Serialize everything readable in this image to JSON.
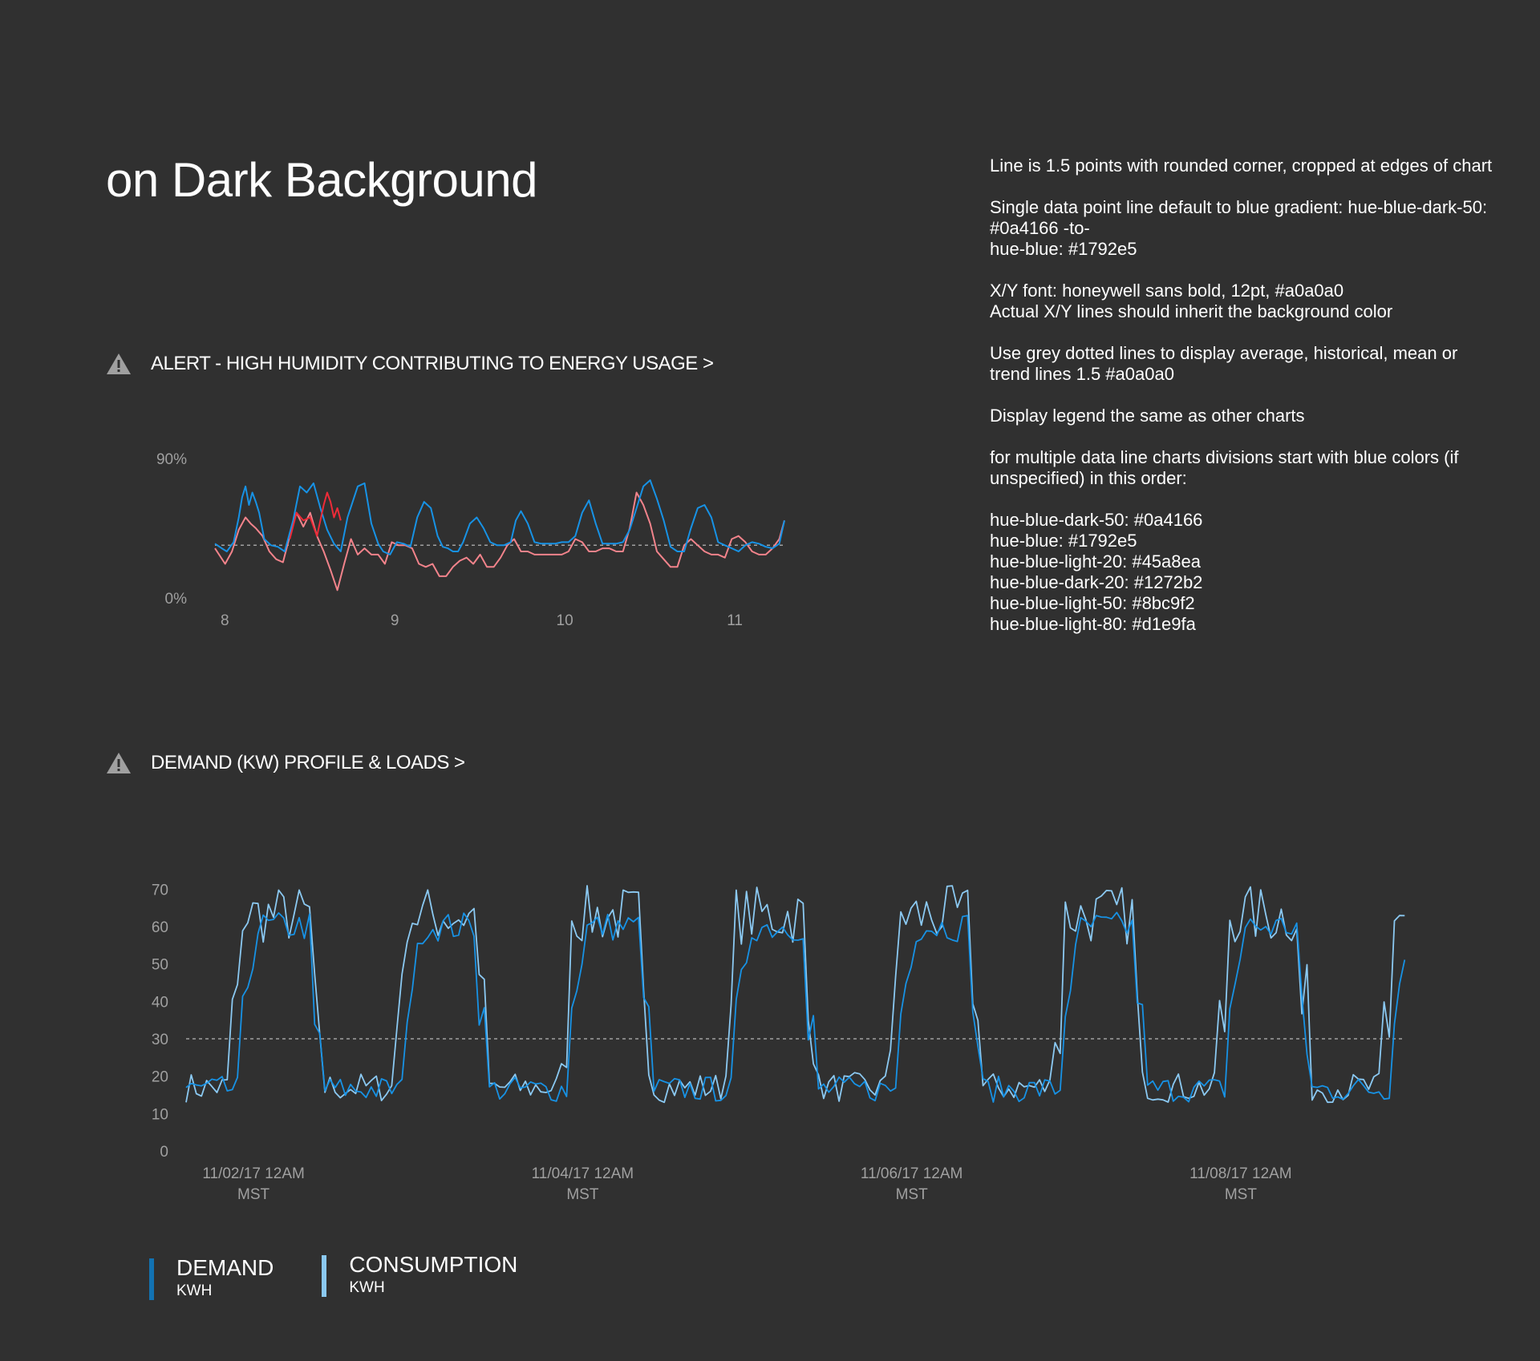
{
  "page": {
    "title": "on Dark Background"
  },
  "notes": {
    "line1": "Line is 1.5 points with rounded corner, cropped at edges of chart",
    "line2a": "Single data point line default to blue gradient: hue-blue-dark-50: #0a4166 -to-",
    "line2b": "hue-blue: #1792e5",
    "line3a": "X/Y font: honeywell sans bold, 12pt, #a0a0a0",
    "line3b": "Actual X/Y lines should inherit the background color",
    "line4": "Use grey dotted lines to display average, historical, mean or trend lines 1.5 #a0a0a0",
    "line5": "Display legend the same as other charts",
    "line6": "for multiple data line charts divisions start with blue colors (if unspecified) in this order:",
    "swatches": [
      "hue-blue-dark-50: #0a4166",
      "hue-blue: #1792e5",
      "hue-blue-light-20: #45a8ea",
      "hue-blue-dark-20: #1272b2",
      "hue-blue-light-50: #8bc9f2",
      "hue-blue-light-80: #d1e9fa"
    ]
  },
  "sections": {
    "alert": {
      "label": "ALERT - HIGH HUMIDITY CONTRIBUTING TO ENERGY USAGE >"
    },
    "demand": {
      "label": "DEMAND (KW) PROFILE & LOADS >"
    }
  },
  "legend": {
    "items": [
      {
        "name": "DEMAND",
        "unit": "KWH",
        "color": "#1272b2"
      },
      {
        "name": "CONSUMPTION",
        "unit": "KWH",
        "color": "#8bc9f2"
      }
    ]
  },
  "colors": {
    "background": "#303030",
    "axis_text": "#a0a0a0",
    "humidity_blue": "#1792e5",
    "humidity_red": "#ee2b38",
    "humidity_pink": "#f2838b",
    "demand_blue": "#1792e5",
    "consumption_blue": "#8bc9f2",
    "trend": "#a0a0a0",
    "warn_icon": "#a0a0a0"
  },
  "chart_data": [
    {
      "id": "humidity",
      "type": "line",
      "title": "",
      "ylim": [
        0,
        90
      ],
      "yticks": [
        {
          "value": 0,
          "label": "0%"
        },
        {
          "value": 90,
          "label": "90%"
        }
      ],
      "xlim": [
        7.98,
        11.33
      ],
      "xticks": [
        {
          "value": 8,
          "label": "8"
        },
        {
          "value": 9,
          "label": "9"
        },
        {
          "value": 10,
          "label": "10"
        },
        {
          "value": 11,
          "label": "11"
        }
      ],
      "trend_value": 34,
      "series_blue": {
        "x": [
          7.98,
          8.02,
          8.05,
          8.09,
          8.12,
          8.14,
          8.16,
          8.18,
          8.2,
          8.22,
          8.24,
          8.27,
          8.31,
          8.35,
          8.39,
          8.44,
          8.48,
          8.52,
          8.56,
          8.6,
          8.64,
          8.68,
          8.72,
          8.76,
          8.82,
          8.86,
          8.9,
          8.94,
          8.97,
          9.01,
          9.05,
          9.09,
          9.13,
          9.17,
          9.21,
          9.25,
          9.29,
          9.32,
          9.35,
          9.38,
          9.41,
          9.44,
          9.48,
          9.52,
          9.56,
          9.6,
          9.64,
          9.68,
          9.72,
          9.75,
          9.78,
          9.82,
          9.86,
          9.9,
          9.94,
          9.98,
          10.02,
          10.06,
          10.1,
          10.14,
          10.18,
          10.22,
          10.26,
          10.3,
          10.34,
          10.38,
          10.42,
          10.46,
          10.5,
          10.54,
          10.58,
          10.62,
          10.66,
          10.7,
          10.74,
          10.78,
          10.82,
          10.86,
          10.9,
          10.94,
          10.98,
          11.02,
          11.06,
          11.1,
          11.14,
          11.18,
          11.22,
          11.26,
          11.3,
          11.33
        ],
        "y": [
          35,
          32,
          30,
          36,
          52,
          65,
          72,
          60,
          68,
          62,
          55,
          38,
          34,
          33,
          30,
          50,
          72,
          68,
          74,
          58,
          44,
          35,
          30,
          52,
          72,
          74,
          48,
          35,
          30,
          28,
          36,
          35,
          33,
          52,
          62,
          58,
          40,
          33,
          32,
          30,
          30,
          36,
          48,
          52,
          45,
          36,
          34,
          34,
          36,
          50,
          56,
          48,
          36,
          35,
          35,
          35,
          36,
          36,
          40,
          55,
          63,
          48,
          35,
          35,
          35,
          36,
          44,
          58,
          72,
          76,
          64,
          50,
          33,
          30,
          30,
          45,
          58,
          60,
          52,
          36,
          34,
          32,
          30,
          34,
          36,
          35,
          33,
          32,
          35,
          50
        ]
      },
      "series_red": {
        "x": [
          8.42,
          8.46,
          8.5,
          8.54,
          8.58,
          8.62,
          8.64,
          8.66,
          8.68,
          8.7,
          8.72
        ],
        "y": [
          38,
          55,
          50,
          52,
          40,
          60,
          68,
          62,
          52,
          58,
          50
        ]
      },
      "series_pink": {
        "x": [
          7.98,
          8.04,
          8.08,
          8.12,
          8.16,
          8.19,
          8.22,
          8.26,
          8.3,
          8.34,
          8.38,
          8.42,
          8.46,
          8.5,
          8.54,
          8.58,
          8.62,
          8.66,
          8.7,
          8.74,
          8.78,
          8.82,
          8.86,
          8.9,
          8.94,
          8.98,
          9.02,
          9.06,
          9.1,
          9.14,
          9.18,
          9.22,
          9.26,
          9.3,
          9.34,
          9.38,
          9.42,
          9.46,
          9.5,
          9.54,
          9.58,
          9.62,
          9.66,
          9.7,
          9.74,
          9.78,
          9.82,
          9.86,
          9.9,
          9.94,
          9.98,
          10.02,
          10.06,
          10.1,
          10.14,
          10.18,
          10.22,
          10.26,
          10.3,
          10.34,
          10.38,
          10.42,
          10.46,
          10.5,
          10.54,
          10.58,
          10.62,
          10.66,
          10.7,
          10.74,
          10.78,
          10.82,
          10.86,
          10.9,
          10.94,
          10.98,
          11.02,
          11.06,
          11.1,
          11.14,
          11.18,
          11.22,
          11.26,
          11.3,
          11.33
        ],
        "y": [
          32,
          22,
          30,
          44,
          52,
          48,
          45,
          40,
          30,
          25,
          23,
          40,
          55,
          46,
          55,
          40,
          30,
          18,
          5,
          22,
          38,
          28,
          32,
          28,
          28,
          22,
          36,
          34,
          34,
          32,
          22,
          20,
          22,
          14,
          14,
          20,
          24,
          26,
          22,
          28,
          20,
          20,
          26,
          34,
          38,
          30,
          30,
          28,
          28,
          28,
          28,
          28,
          30,
          38,
          36,
          30,
          30,
          32,
          32,
          30,
          30,
          45,
          68,
          60,
          48,
          30,
          25,
          20,
          20,
          34,
          38,
          34,
          30,
          28,
          28,
          26,
          38,
          40,
          36,
          30,
          28,
          28,
          32,
          38,
          50
        ]
      }
    },
    {
      "id": "demand",
      "type": "line",
      "title": "",
      "ylim": [
        0,
        75
      ],
      "yticks": [
        0,
        10,
        20,
        30,
        40,
        50,
        60,
        70
      ],
      "xlim": [
        0,
        7.4
      ],
      "xticks": [
        {
          "value": 0.41,
          "label": "11/02/17 12AM",
          "sub": "MST"
        },
        {
          "value": 2.41,
          "label": "11/04/17 12AM",
          "sub": "MST"
        },
        {
          "value": 4.41,
          "label": "11/06/17 12AM",
          "sub": "MST"
        },
        {
          "value": 6.41,
          "label": "11/08/17 12AM",
          "sub": "MST"
        }
      ],
      "trend_value": 30,
      "series": [
        {
          "name": "DEMAND",
          "unit": "KWH",
          "color": "#1792e5",
          "points_per_day": 32,
          "shape": "demand"
        },
        {
          "name": "CONSUMPTION",
          "unit": "KWH",
          "color": "#8bc9f2",
          "points_per_day": 32,
          "shape": "consumption"
        }
      ],
      "daily_profile_note": "repeating day/night load profile with low ~15 overnight and high ~55-70 daytime"
    }
  ]
}
